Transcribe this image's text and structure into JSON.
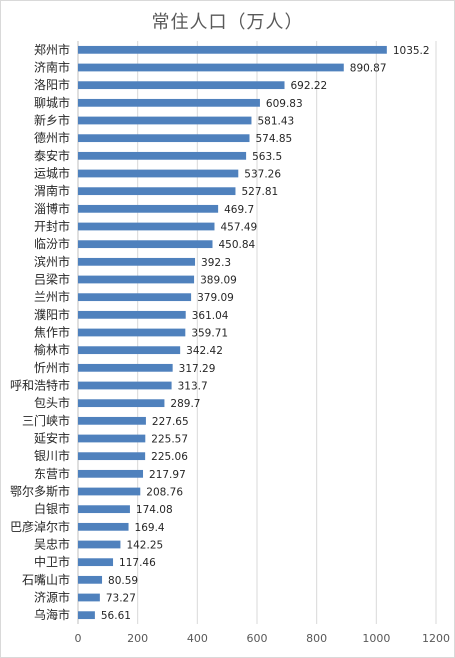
{
  "chart_data": {
    "type": "bar",
    "orientation": "horizontal",
    "title": "常住人口（万人）",
    "xlabel": "",
    "ylabel": "",
    "xlim": [
      0,
      1200
    ],
    "xticks": [
      0,
      200,
      400,
      600,
      800,
      1000,
      1200
    ],
    "grid": true,
    "bar_color": "#4f81bd",
    "categories": [
      "郑州市",
      "济南市",
      "洛阳市",
      "聊城市",
      "新乡市",
      "德州市",
      "泰安市",
      "运城市",
      "渭南市",
      "淄博市",
      "开封市",
      "临汾市",
      "滨州市",
      "吕梁市",
      "兰州市",
      "濮阳市",
      "焦作市",
      "榆林市",
      "忻州市",
      "呼和浩特市",
      "包头市",
      "三门峡市",
      "延安市",
      "银川市",
      "东营市",
      "鄂尔多斯市",
      "白银市",
      "巴彦淖尔市",
      "吴忠市",
      "中卫市",
      "石嘴山市",
      "济源市",
      "乌海市"
    ],
    "values": [
      1035.2,
      890.87,
      692.22,
      609.83,
      581.43,
      574.85,
      563.5,
      537.26,
      527.81,
      469.7,
      457.49,
      450.84,
      392.3,
      389.09,
      379.09,
      361.04,
      359.71,
      342.42,
      317.29,
      313.7,
      289.7,
      227.65,
      225.57,
      225.06,
      217.97,
      208.76,
      174.08,
      169.4,
      142.25,
      117.46,
      80.59,
      73.27,
      56.61
    ],
    "value_labels": [
      "1035.2",
      "890.87",
      "692.22",
      "609.83",
      "581.43",
      "574.85",
      "563.5",
      "537.26",
      "527.81",
      "469.7",
      "457.49",
      "450.84",
      "392.3",
      "389.09",
      "379.09",
      "361.04",
      "359.71",
      "342.42",
      "317.29",
      "313.7",
      "289.7",
      "227.65",
      "225.57",
      "225.06",
      "217.97",
      "208.76",
      "174.08",
      "169.4",
      "142.25",
      "117.46",
      "80.59",
      "73.27",
      "56.61"
    ]
  }
}
